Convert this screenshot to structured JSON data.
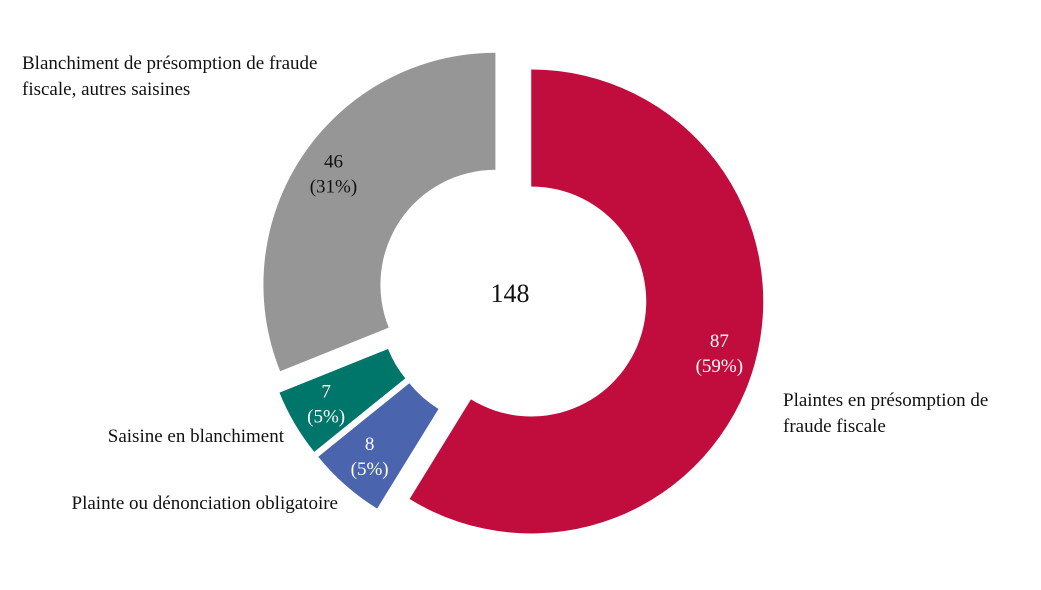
{
  "chart_data": {
    "type": "donut",
    "categories": [
      "Plaintes en présomption de fraude fiscale",
      "Plainte ou dénonciation obligatoire",
      "Saisine en blanchiment",
      "Blanchiment de présomption de fraude fiscale, autres saisines"
    ],
    "values": [
      87,
      8,
      7,
      46
    ],
    "percents": [
      59,
      5,
      5,
      31
    ],
    "percent_labels": [
      "(59%)",
      "(5%)",
      "(5%)",
      "(31%)"
    ],
    "colors": [
      "#c00d3d",
      "#4a65ad",
      "#00766b",
      "#969696"
    ],
    "total": 148
  }
}
